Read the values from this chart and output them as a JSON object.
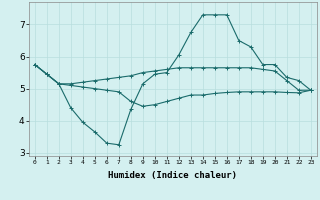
{
  "xlabel": "Humidex (Indice chaleur)",
  "ylabel": "",
  "bg_color": "#d4f0f0",
  "grid_color": "#b8dede",
  "line_color": "#1a6b6b",
  "x_values": [
    0,
    1,
    2,
    3,
    4,
    5,
    6,
    7,
    8,
    9,
    10,
    11,
    12,
    13,
    14,
    15,
    16,
    17,
    18,
    19,
    20,
    21,
    22,
    23
  ],
  "line1_y": [
    5.75,
    5.45,
    5.15,
    5.15,
    5.2,
    5.25,
    5.3,
    5.35,
    5.4,
    5.5,
    5.55,
    5.6,
    5.65,
    5.65,
    5.65,
    5.65,
    5.65,
    5.65,
    5.65,
    5.6,
    5.55,
    5.25,
    4.95,
    4.95
  ],
  "line2_y": [
    5.75,
    5.45,
    5.15,
    4.4,
    3.95,
    3.65,
    3.3,
    3.25,
    4.35,
    5.15,
    5.45,
    5.5,
    6.05,
    6.75,
    7.3,
    7.3,
    7.3,
    6.5,
    6.3,
    5.75,
    5.75,
    5.35,
    5.25,
    4.95
  ],
  "line3_y": [
    5.75,
    5.45,
    5.15,
    5.1,
    5.05,
    5.0,
    4.95,
    4.9,
    4.6,
    4.45,
    4.5,
    4.6,
    4.7,
    4.8,
    4.8,
    4.85,
    4.88,
    4.9,
    4.9,
    4.9,
    4.9,
    4.88,
    4.87,
    4.95
  ],
  "xlim": [
    -0.5,
    23.5
  ],
  "ylim": [
    2.9,
    7.7
  ],
  "yticks": [
    3,
    4,
    5,
    6,
    7
  ],
  "xticks": [
    0,
    1,
    2,
    3,
    4,
    5,
    6,
    7,
    8,
    9,
    10,
    11,
    12,
    13,
    14,
    15,
    16,
    17,
    18,
    19,
    20,
    21,
    22,
    23
  ],
  "figsize": [
    3.2,
    2.0
  ],
  "dpi": 100
}
